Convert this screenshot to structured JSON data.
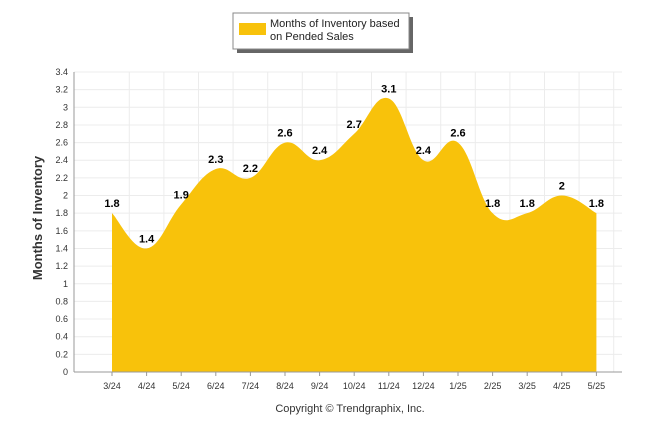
{
  "colors": {
    "area": "#F8C20B",
    "grid": "#ececec",
    "axis": "#999999"
  },
  "legend": {
    "line1": "Months of Inventory based",
    "line2": "on Pended Sales"
  },
  "footer": "Copyright © Trendgraphix, Inc.",
  "chart_data": {
    "type": "area",
    "categories": [
      "3/24",
      "4/24",
      "5/24",
      "6/24",
      "7/24",
      "8/24",
      "9/24",
      "10/24",
      "11/24",
      "12/24",
      "1/25",
      "2/25",
      "3/25",
      "4/25",
      "5/25"
    ],
    "series": [
      {
        "name": "Months of Inventory based on Pended Sales",
        "values": [
          1.8,
          1.4,
          1.9,
          2.3,
          2.2,
          2.6,
          2.4,
          2.7,
          3.1,
          2.4,
          2.6,
          1.8,
          1.8,
          2,
          1.8
        ],
        "labels": [
          "1.8",
          "1.4",
          "1.9",
          "2.3",
          "2.2",
          "2.6",
          "2.4",
          "2.7",
          "3.1",
          "2.4",
          "2.6",
          "1.8",
          "1.8",
          "2",
          "1.8"
        ]
      }
    ],
    "ylabel": "Months of Inventory",
    "xlabel": "",
    "ylim": [
      0,
      3.4
    ],
    "yticks": [
      "0",
      "0.2",
      "0.4",
      "0.6",
      "0.8",
      "1",
      "1.2",
      "1.4",
      "1.6",
      "1.8",
      "2",
      "2.2",
      "2.4",
      "2.6",
      "2.8",
      "3",
      "3.2",
      "3.4"
    ],
    "grid": true,
    "legend_position": "top-center"
  }
}
